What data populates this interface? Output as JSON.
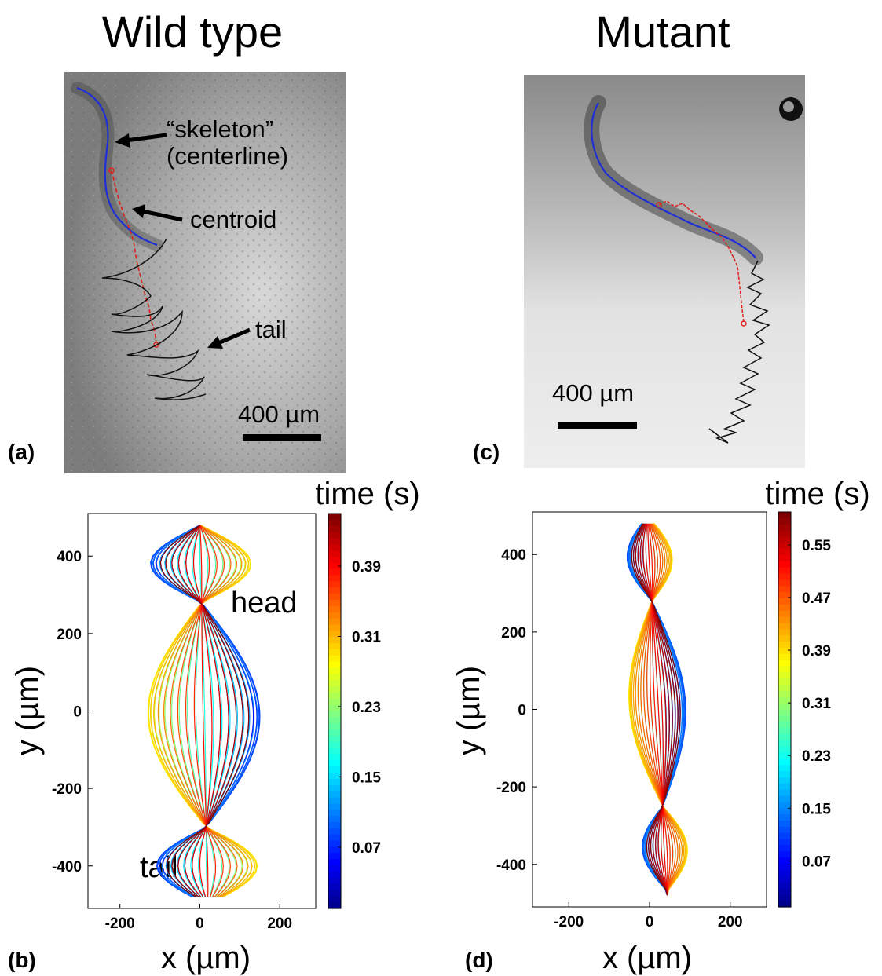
{
  "titles": {
    "left": "Wild type",
    "right": "Mutant"
  },
  "panels": {
    "a": {
      "letter": "(a)",
      "annotations": {
        "skeleton": "“skeleton”",
        "centerline": "(centerline)",
        "centroid": "centroid",
        "tail": "tail"
      },
      "scale_bar": "400 µm"
    },
    "c": {
      "letter": "(c)",
      "scale_bar": "400 µm"
    },
    "b": {
      "letter": "(b)",
      "head_label": "head",
      "tail_label": "tail"
    },
    "d": {
      "letter": "(d)"
    }
  },
  "colors": {
    "skeleton": "#1f2fd6",
    "centroid_track": "#e0201a",
    "tail_track": "#111111",
    "photo_bg_a": "#9a9a9a",
    "photo_bg_c": "#d8d8d8"
  },
  "chart_data": [
    {
      "id": "b",
      "type": "line",
      "description_free": true,
      "xlabel": "x (µm)",
      "ylabel": "y (µm)",
      "xlim": [
        -280,
        290
      ],
      "ylim": [
        -510,
        510
      ],
      "xticks": [
        -200,
        0,
        200
      ],
      "yticks": [
        -400,
        -200,
        0,
        200,
        400
      ],
      "colorbar": {
        "label": "time (s)",
        "ticks": [
          0.07,
          0.15,
          0.23,
          0.31,
          0.39
        ],
        "range": [
          0,
          0.45
        ],
        "colormap": "jet"
      },
      "series_model": {
        "curves": 45,
        "t_range": [
          0,
          0.45
        ],
        "x_amplitude": 140,
        "node_y": [
          280,
          -300
        ],
        "head_y": [
          300,
          480
        ],
        "tail_y": [
          -300,
          -470
        ]
      }
    },
    {
      "id": "d",
      "type": "line",
      "xlabel": "x (µm)",
      "ylabel": "y (µm)",
      "xlim": [
        -290,
        290
      ],
      "ylim": [
        -510,
        510
      ],
      "xticks": [
        -200,
        0,
        200
      ],
      "yticks": [
        -400,
        -200,
        0,
        200,
        400
      ],
      "colorbar": {
        "label": "time (s)",
        "ticks": [
          0.07,
          0.15,
          0.23,
          0.31,
          0.39,
          0.47,
          0.55
        ],
        "range": [
          0,
          0.6
        ],
        "colormap": "jet"
      },
      "series_model": {
        "curves": 55,
        "t_range": [
          0,
          0.6
        ],
        "x_amplitude": 70,
        "node_y": [
          280,
          -250
        ]
      }
    }
  ]
}
